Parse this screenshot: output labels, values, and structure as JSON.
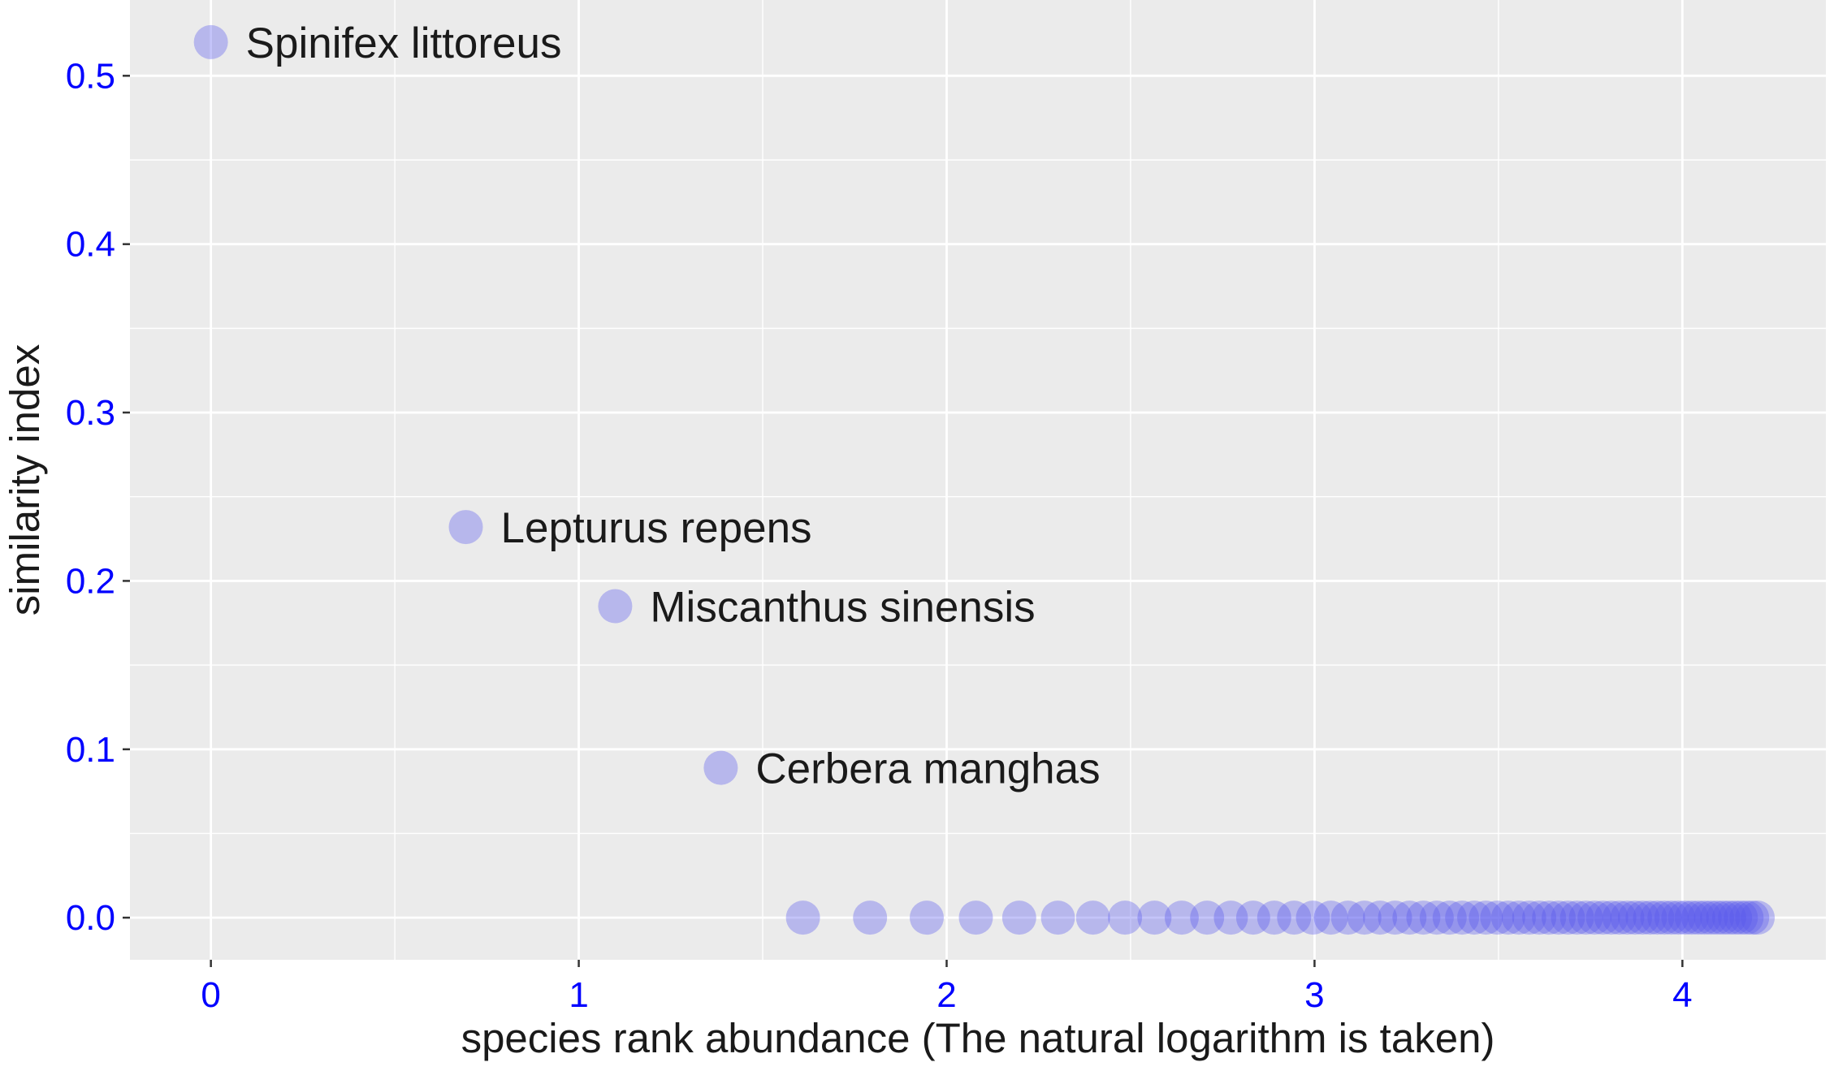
{
  "chart_data": {
    "type": "scatter",
    "xlabel": "species rank abundance (The natural logarithm is taken)",
    "ylabel": "similarity index",
    "xlim": [
      -0.22,
      4.39
    ],
    "ylim": [
      -0.025,
      0.545
    ],
    "x_ticks": [
      0,
      1,
      2,
      3,
      4
    ],
    "y_ticks": [
      0.0,
      0.1,
      0.2,
      0.3,
      0.4,
      0.5
    ],
    "x_tick_labels": [
      "0",
      "1",
      "2",
      "3",
      "4"
    ],
    "y_tick_labels": [
      "0.0",
      "0.1",
      "0.2",
      "0.3",
      "0.4",
      "0.5"
    ],
    "grid": true,
    "legend": "none",
    "colors": {
      "panel_background": "#ebebeb",
      "grid": "#ffffff",
      "point": "#5555ee",
      "point_opacity": 0.35,
      "tick_label": "#0000ff",
      "text": "#1a1a1a"
    },
    "labeled_points": [
      {
        "rank": 1,
        "x": 0.0,
        "y": 0.52,
        "label": "Spinifex littoreus"
      },
      {
        "rank": 2,
        "x": 0.693,
        "y": 0.232,
        "label": "Lepturus repens"
      },
      {
        "rank": 3,
        "x": 1.099,
        "y": 0.185,
        "label": "Miscanthus sinensis"
      },
      {
        "rank": 4,
        "x": 1.386,
        "y": 0.089,
        "label": "Cerbera manghas"
      }
    ],
    "zero_points": {
      "y": 0.0,
      "ranks_from": 5,
      "ranks_to": 67,
      "x_rule": "ln(rank)"
    }
  }
}
